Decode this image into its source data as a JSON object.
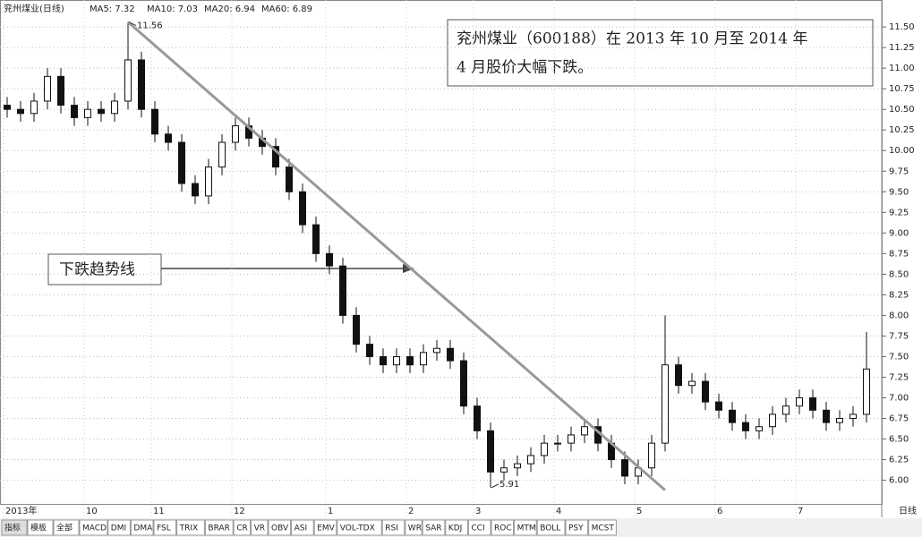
{
  "chart_data": {
    "type": "candlestick",
    "title": "兖州煤业(日线)",
    "indicators": [
      "MA5: 7.32",
      "MA10: 7.03",
      "MA20: 6.94",
      "MA60: 6.89"
    ],
    "categories": [
      "2013年",
      null,
      null,
      null,
      null,
      null,
      "10",
      null,
      null,
      null,
      null,
      "11",
      null,
      null,
      null,
      null,
      null,
      "12",
      null,
      null,
      null,
      null,
      null,
      null,
      "1",
      null,
      null,
      null,
      null,
      null,
      "2",
      null,
      null,
      null,
      null,
      "3",
      null,
      null,
      null,
      null,
      null,
      "4",
      null,
      null,
      null,
      null,
      null,
      "5",
      null,
      null,
      null,
      null,
      null,
      "6",
      null,
      null,
      null,
      null,
      null,
      "7",
      null,
      null,
      null,
      null,
      null
    ],
    "open": [
      10.55,
      10.5,
      10.45,
      10.6,
      10.9,
      10.55,
      10.4,
      10.5,
      10.45,
      10.6,
      11.1,
      10.5,
      10.2,
      10.1,
      9.6,
      9.45,
      9.8,
      10.1,
      10.3,
      10.15,
      10.05,
      9.8,
      9.5,
      9.1,
      8.75,
      8.6,
      8.0,
      7.65,
      7.5,
      7.4,
      7.5,
      7.4,
      7.55,
      7.6,
      7.45,
      6.9,
      6.6,
      6.1,
      6.15,
      6.2,
      6.3,
      6.45,
      6.45,
      6.55,
      6.65,
      6.45,
      6.25,
      6.05,
      6.15,
      6.45,
      7.4,
      7.15,
      7.2,
      6.95,
      6.85,
      6.7,
      6.6,
      6.65,
      6.8,
      6.9,
      7.0,
      6.85,
      6.7,
      6.75,
      6.8
    ],
    "high": [
      10.65,
      10.6,
      10.7,
      11.0,
      11.0,
      10.65,
      10.6,
      10.6,
      10.7,
      11.56,
      11.2,
      10.6,
      10.3,
      10.2,
      9.7,
      9.9,
      10.2,
      10.4,
      10.4,
      10.25,
      10.15,
      9.9,
      9.6,
      9.2,
      8.85,
      8.7,
      8.1,
      7.75,
      7.6,
      7.6,
      7.6,
      7.65,
      7.7,
      7.7,
      7.55,
      7.0,
      6.7,
      6.25,
      6.3,
      6.4,
      6.55,
      6.55,
      6.65,
      6.75,
      6.75,
      6.55,
      6.35,
      6.25,
      6.55,
      8.0,
      7.5,
      7.3,
      7.3,
      7.05,
      6.95,
      6.8,
      6.75,
      6.9,
      7.0,
      7.1,
      7.1,
      6.95,
      6.85,
      6.9,
      7.8
    ],
    "low": [
      10.4,
      10.35,
      10.35,
      10.5,
      10.45,
      10.3,
      10.3,
      10.35,
      10.35,
      10.5,
      10.4,
      10.1,
      10.0,
      9.5,
      9.35,
      9.35,
      9.7,
      10.0,
      10.05,
      9.95,
      9.7,
      9.4,
      9.0,
      8.65,
      8.5,
      7.9,
      7.55,
      7.4,
      7.3,
      7.3,
      7.3,
      7.3,
      7.45,
      7.35,
      6.8,
      6.5,
      5.91,
      6.0,
      6.05,
      6.1,
      6.2,
      6.35,
      6.35,
      6.45,
      6.35,
      6.15,
      5.95,
      5.95,
      6.05,
      6.35,
      7.05,
      7.05,
      6.85,
      6.75,
      6.6,
      6.5,
      6.5,
      6.55,
      6.7,
      6.8,
      6.75,
      6.6,
      6.6,
      6.65,
      6.7
    ],
    "close": [
      10.5,
      10.45,
      10.6,
      10.9,
      10.55,
      10.4,
      10.5,
      10.45,
      10.6,
      11.1,
      10.5,
      10.2,
      10.1,
      9.6,
      9.45,
      9.8,
      10.1,
      10.3,
      10.15,
      10.05,
      9.8,
      9.5,
      9.1,
      8.75,
      8.6,
      8.0,
      7.65,
      7.5,
      7.4,
      7.5,
      7.4,
      7.55,
      7.6,
      7.45,
      6.9,
      6.6,
      6.1,
      6.15,
      6.2,
      6.3,
      6.45,
      6.45,
      6.55,
      6.65,
      6.45,
      6.25,
      6.05,
      6.15,
      6.45,
      7.4,
      7.15,
      7.2,
      6.95,
      6.85,
      6.7,
      6.6,
      6.65,
      6.8,
      6.9,
      7.0,
      6.85,
      6.7,
      6.75,
      6.8,
      7.35
    ],
    "color": "#111111",
    "ylim": [
      5.8,
      11.74
    ],
    "yticks": [
      {
        "value": 6,
        "label": "6.00"
      },
      {
        "value": 6.25,
        "label": "6.25"
      },
      {
        "value": 6.5,
        "label": "6.50"
      },
      {
        "value": 6.75,
        "label": "6.75"
      },
      {
        "value": 7,
        "label": "7.00"
      },
      {
        "value": 7.25,
        "label": "7.25"
      },
      {
        "value": 7.5,
        "label": "7.50"
      },
      {
        "value": 7.75,
        "label": "7.75"
      },
      {
        "value": 8,
        "label": "8.00"
      },
      {
        "value": 8.25,
        "label": "8.25"
      },
      {
        "value": 8.5,
        "label": "8.50"
      },
      {
        "value": 8.75,
        "label": "8.75"
      },
      {
        "value": 9,
        "label": "9.00"
      },
      {
        "value": 9.25,
        "label": "9.25"
      },
      {
        "value": 9.5,
        "label": "9.50"
      },
      {
        "value": 9.75,
        "label": "9.75"
      },
      {
        "value": 10,
        "label": "10.00"
      },
      {
        "value": 10.25,
        "label": "10.25"
      },
      {
        "value": 10.5,
        "label": "10.50"
      },
      {
        "value": 10.75,
        "label": "10.75"
      },
      {
        "value": 11,
        "label": "11.00"
      },
      {
        "value": 11.25,
        "label": "11.25"
      },
      {
        "value": 11.5,
        "label": "11.50"
      }
    ],
    "grid": true,
    "annotations": [
      {
        "index": 9,
        "value": 11.56
      },
      {
        "index": 36,
        "value": 5.91
      }
    ],
    "trend_line": {
      "x": [
        9,
        49
      ],
      "values": [
        11.56,
        5.88
      ],
      "label": "下跌趋势线",
      "color": "#999999"
    },
    "note": [
      "兖州煤业（600188）在 2013 年 10 月至 2014 年",
      "4 月股价大幅下跌。"
    ]
  },
  "toolbar": {
    "tabs": [
      "指标",
      "模板",
      "全部",
      "MACD",
      "DMI",
      "DMA",
      "FSL",
      "TRIX",
      "BRAR",
      "CR",
      "VR",
      "OBV",
      "ASI",
      "EMV",
      "VOL-TDX",
      "RSI",
      "WR",
      "SAR",
      "KDJ",
      "CCI",
      "ROC",
      "MTM",
      "BOLL",
      "PSY",
      "MCST"
    ],
    "period": "日线"
  }
}
